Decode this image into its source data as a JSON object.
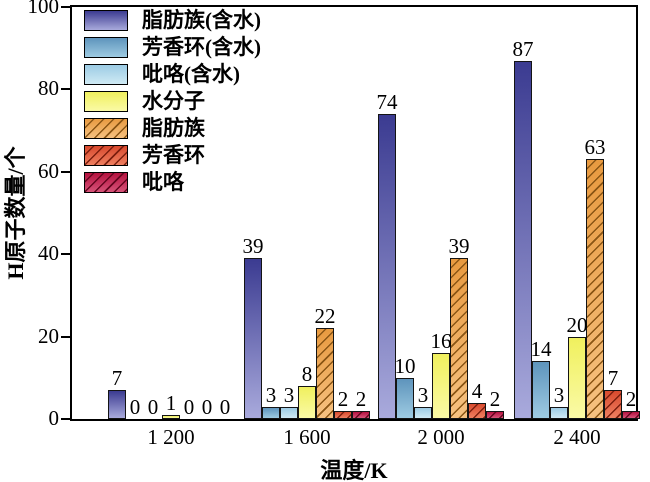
{
  "chart_data": {
    "type": "bar",
    "title": "",
    "xlabel": "温度/K",
    "ylabel": "H原子数量/个",
    "ylim": [
      0,
      100
    ],
    "yticks": [
      0,
      20,
      40,
      60,
      80,
      100
    ],
    "categories": [
      "1 200",
      "1 600",
      "2 000",
      "2 400"
    ],
    "series": [
      {
        "name": "脂肪族(含水)",
        "values": [
          7,
          39,
          74,
          87
        ],
        "color_top": "#3b3b91",
        "color_bottom": "#a9aadc",
        "hatch": null
      },
      {
        "name": "芳香环(含水)",
        "values": [
          0,
          3,
          10,
          14
        ],
        "color_top": "#5e94bc",
        "color_bottom": "#9ecbe2",
        "hatch": null
      },
      {
        "name": "吡咯(含水)",
        "values": [
          0,
          3,
          3,
          3
        ],
        "color_top": "#9ccbe4",
        "color_bottom": "#cfeaf4",
        "hatch": null
      },
      {
        "name": "水分子",
        "values": [
          1,
          8,
          16,
          20
        ],
        "color_top": "#f0f05e",
        "color_bottom": "#fafaa6",
        "hatch": null
      },
      {
        "name": "脂肪族",
        "values": [
          0,
          22,
          39,
          63
        ],
        "color_top": "#e89a40",
        "color_bottom": "#f6c180",
        "hatch": "#8a5514"
      },
      {
        "name": "芳香环",
        "values": [
          0,
          2,
          4,
          7
        ],
        "color_top": "#d94a2e",
        "color_bottom": "#ee7f60",
        "hatch": "#7c1e0e"
      },
      {
        "name": "吡咯",
        "values": [
          0,
          2,
          2,
          2
        ],
        "color_top": "#b5123f",
        "color_bottom": "#d65379",
        "hatch": "#64051e"
      }
    ],
    "value_labels_shown": true,
    "grid": false,
    "legend_position": "top-left",
    "axis_color": "#000000",
    "text_color": "#000000",
    "background_color": "#ffffff"
  }
}
